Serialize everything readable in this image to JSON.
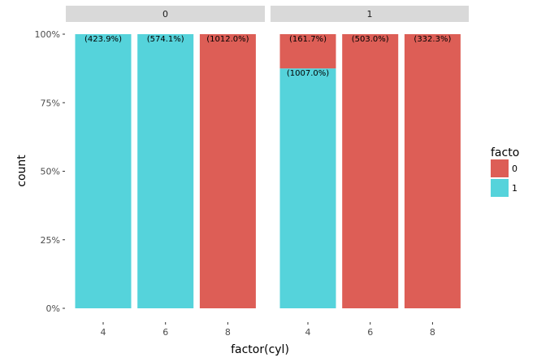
{
  "chart_data": {
    "type": "bar",
    "position": "fill",
    "xlabel": "factor(cyl)",
    "ylabel": "count",
    "ylim": [
      0,
      1
    ],
    "y_ticks": [
      "0%",
      "25%",
      "50%",
      "75%",
      "100%"
    ],
    "legend": {
      "title": "facto",
      "placement": "right",
      "entries": [
        {
          "label": "0",
          "color": "#dd5e56"
        },
        {
          "label": "1",
          "color": "#55d3db"
        }
      ]
    },
    "facets": [
      {
        "label": "0",
        "categories": [
          "4",
          "6",
          "8"
        ],
        "stacks": [
          [
            {
              "group": "1",
              "value": 1.0,
              "label": "(423.9%)"
            }
          ],
          [
            {
              "group": "1",
              "value": 1.0,
              "label": "(574.1%)"
            }
          ],
          [
            {
              "group": "0",
              "value": 1.0,
              "label": "(1012.0%)"
            }
          ]
        ]
      },
      {
        "label": "1",
        "categories": [
          "4",
          "6",
          "8"
        ],
        "stacks": [
          [
            {
              "group": "1",
              "value": 0.875,
              "label": "(1007.0%)"
            },
            {
              "group": "0",
              "value": 0.125,
              "label": "(161.7%)"
            }
          ],
          [
            {
              "group": "0",
              "value": 1.0,
              "label": "(503.0%)"
            }
          ],
          [
            {
              "group": "0",
              "value": 1.0,
              "label": "(332.3%)"
            }
          ]
        ]
      }
    ]
  }
}
